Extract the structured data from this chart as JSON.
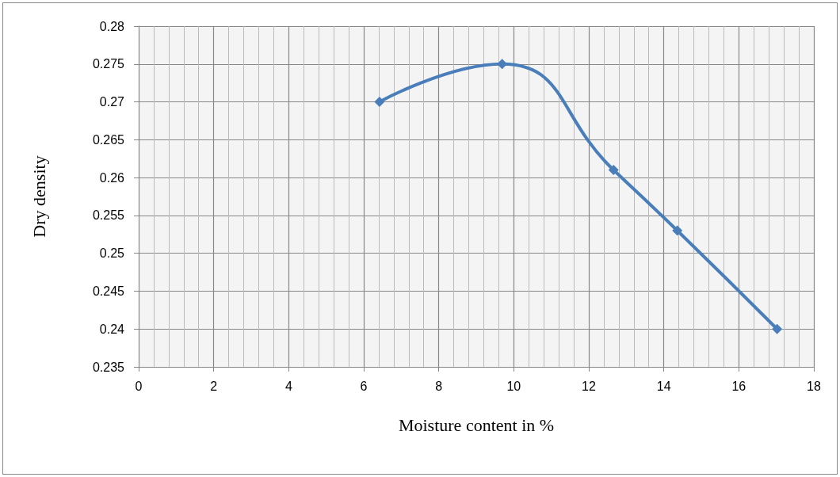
{
  "chart_data": {
    "type": "line",
    "xlabel": "Moisture content in %",
    "ylabel": "Dry density",
    "x": [
      6.42,
      9.69,
      12.66,
      14.36,
      17.02
    ],
    "series": [
      {
        "color": "#4a7ebb",
        "values": [
          0.27,
          0.275,
          0.261,
          0.253,
          0.24
        ]
      }
    ],
    "xlim": [
      0,
      18
    ],
    "xticks": [
      0,
      2,
      4,
      6,
      8,
      10,
      12,
      14,
      16,
      18
    ],
    "ylim": [
      0.235,
      0.28
    ],
    "yticks": [
      0.235,
      0.24,
      0.245,
      0.25,
      0.255,
      0.26,
      0.265,
      0.27,
      0.275,
      0.28
    ],
    "grid": true,
    "marker": "diamond",
    "line_style": "solid"
  }
}
